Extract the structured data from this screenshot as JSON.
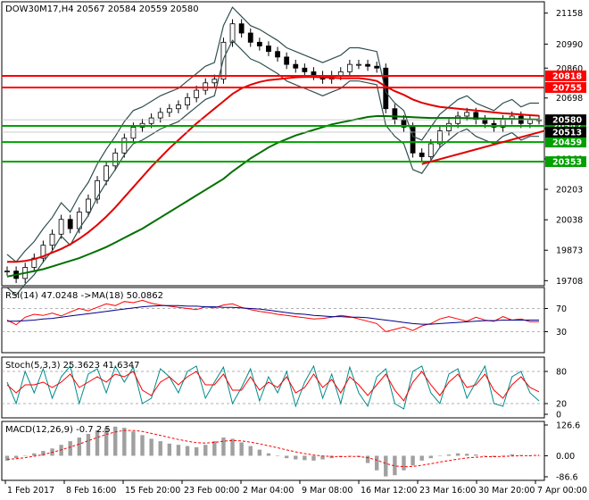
{
  "chart_data": [
    {
      "type": "candlestick",
      "symbol_title": "DOW30M17,H4  20567 20584 20559 20580",
      "ylim": [
        19700,
        21200
      ],
      "y_ticks": [
        19708,
        19873,
        20038,
        20203,
        20368,
        20533,
        20698,
        20860,
        20990,
        21158
      ],
      "y_tick_labels": [
        "19708",
        "19873",
        "20038",
        "20203",
        "20368",
        "20533",
        "20698",
        "20860",
        "20990",
        "21158"
      ],
      "x_labels": [
        "1 Feb 2017",
        "8 Feb 16:00",
        "15 Feb 20:00",
        "23 Feb 00:00",
        "2 Mar 04:00",
        "9 Mar 08:00",
        "16 Mar 12:00",
        "23 Mar 16:00",
        "30 Mar 20:00",
        "7 Apr 00:00"
      ],
      "horizontal_levels": [
        {
          "value": 20818,
          "label": "20818",
          "color": "#ff0000"
        },
        {
          "value": 20755,
          "label": "20755",
          "color": "#ff0000"
        },
        {
          "value": 20547,
          "label": "20547",
          "color": "#00a000"
        },
        {
          "value": 20459,
          "label": "20459",
          "color": "#00a000"
        },
        {
          "value": 20353,
          "label": "20353",
          "color": "#00a000"
        }
      ],
      "price_tags": [
        {
          "value": 20580,
          "label": "20580",
          "color": "#000000"
        },
        {
          "value": 20513,
          "label": "20513",
          "color": "#000000"
        }
      ],
      "close_series": [
        19760,
        19720,
        19780,
        19830,
        19900,
        19960,
        20040,
        19990,
        20080,
        20150,
        20250,
        20330,
        20400,
        20480,
        20540,
        20560,
        20590,
        20620,
        20640,
        20660,
        20700,
        20740,
        20780,
        20800,
        21000,
        21100,
        21050,
        21000,
        20980,
        20950,
        20920,
        20880,
        20860,
        20840,
        20820,
        20800,
        20820,
        20840,
        20880,
        20880,
        20870,
        20860,
        20640,
        20580,
        20540,
        20400,
        20380,
        20450,
        20520,
        20560,
        20600,
        20620,
        20580,
        20560,
        20540,
        20580,
        20600,
        20560,
        20580,
        20580
      ],
      "series": [
        {
          "name": "MA red",
          "color": "#e00000",
          "values": [
            19810,
            19810,
            19815,
            19825,
            19840,
            19860,
            19880,
            19905,
            19935,
            19970,
            20010,
            20055,
            20105,
            20160,
            20215,
            20270,
            20325,
            20375,
            20425,
            20470,
            20515,
            20560,
            20600,
            20640,
            20680,
            20720,
            20750,
            20770,
            20785,
            20795,
            20800,
            20805,
            20810,
            20812,
            20812,
            20810,
            20808,
            20805,
            20805,
            20805,
            20800,
            20790,
            20760,
            20735,
            20715,
            20690,
            20672,
            20660,
            20650,
            20645,
            20640,
            20635,
            20630,
            20625,
            20620,
            20615,
            20612,
            20608,
            20605,
            20602
          ]
        },
        {
          "name": "MA green",
          "color": "#007000",
          "values": [
            19730,
            19740,
            19750,
            19760,
            19770,
            19785,
            19800,
            19815,
            19830,
            19850,
            19870,
            19890,
            19915,
            19940,
            19965,
            19990,
            20020,
            20050,
            20080,
            20110,
            20140,
            20170,
            20200,
            20230,
            20260,
            20300,
            20335,
            20370,
            20400,
            20430,
            20455,
            20475,
            20495,
            20510,
            20525,
            20540,
            20555,
            20565,
            20575,
            20585,
            20595,
            20600,
            20600,
            20598,
            20596,
            20594,
            20592,
            20590,
            20590,
            20590,
            20590,
            20589,
            20588,
            20587,
            20586,
            20585,
            20584,
            20583,
            20582,
            20581
          ]
        }
      ],
      "trendline": {
        "from": [
          46,
          20340
        ],
        "to": [
          59,
          20520
        ],
        "color": "#e00000"
      }
    },
    {
      "type": "line",
      "title": "RSI(14) 47.0248  ->MA(18) 50.0862",
      "ylim": [
        0,
        100
      ],
      "y_ticks": [
        30,
        70
      ],
      "y_tick_labels": [
        "30",
        "70"
      ],
      "levels": [
        30,
        70
      ],
      "series": [
        {
          "name": "RSI(14)",
          "color": "#ff0000",
          "values": [
            50,
            42,
            55,
            60,
            58,
            62,
            57,
            64,
            70,
            66,
            72,
            78,
            75,
            82,
            80,
            84,
            79,
            76,
            74,
            72,
            70,
            68,
            73,
            71,
            76,
            78,
            72,
            68,
            65,
            63,
            60,
            58,
            56,
            54,
            52,
            53,
            55,
            58,
            56,
            52,
            48,
            44,
            30,
            34,
            38,
            32,
            40,
            44,
            52,
            56,
            52,
            48,
            55,
            50,
            48,
            56,
            50,
            52,
            47,
            47
          ]
        },
        {
          "name": "MA(18)",
          "color": "#00008b",
          "values": [
            48,
            48,
            49,
            50,
            52,
            53,
            55,
            57,
            59,
            61,
            63,
            65,
            67,
            69,
            71,
            73,
            74,
            75,
            75,
            75,
            74,
            74,
            73,
            73,
            72,
            72,
            71,
            70,
            69,
            67,
            65,
            63,
            61,
            60,
            58,
            57,
            56,
            56,
            55,
            55,
            54,
            52,
            50,
            48,
            46,
            44,
            43,
            43,
            44,
            45,
            46,
            47,
            48,
            49,
            49,
            50,
            50,
            50,
            50,
            50
          ]
        }
      ]
    },
    {
      "type": "line",
      "title": "Stoch(5,3,3) 25.3623 41.6347",
      "ylim": [
        0,
        100
      ],
      "y_ticks": [
        0,
        20,
        80
      ],
      "y_tick_labels": [
        "0",
        "20",
        "80"
      ],
      "levels": [
        20,
        80
      ],
      "series": [
        {
          "name": "%K",
          "color": "#008b8b",
          "values": [
            60,
            20,
            80,
            40,
            85,
            30,
            70,
            90,
            20,
            75,
            85,
            40,
            90,
            60,
            88,
            20,
            30,
            85,
            70,
            40,
            80,
            90,
            30,
            60,
            88,
            20,
            50,
            85,
            25,
            70,
            40,
            80,
            15,
            60,
            90,
            30,
            75,
            20,
            88,
            40,
            15,
            70,
            85,
            20,
            10,
            80,
            90,
            40,
            20,
            75,
            85,
            30,
            60,
            90,
            20,
            15,
            70,
            80,
            40,
            25
          ]
        },
        {
          "name": "%D",
          "color": "#ff0000",
          "values": [
            55,
            40,
            55,
            55,
            60,
            50,
            60,
            75,
            50,
            60,
            70,
            60,
            75,
            70,
            80,
            45,
            35,
            60,
            70,
            55,
            70,
            80,
            55,
            55,
            75,
            45,
            45,
            70,
            45,
            60,
            50,
            70,
            40,
            50,
            75,
            50,
            65,
            40,
            70,
            55,
            35,
            55,
            75,
            45,
            25,
            60,
            80,
            55,
            35,
            60,
            75,
            50,
            55,
            75,
            45,
            30,
            55,
            70,
            50,
            42
          ]
        }
      ]
    },
    {
      "type": "bar",
      "title": "MACD(12,26,9) -0.7 2.5",
      "ylim": [
        -86.6,
        126.6
      ],
      "y_ticks": [
        -86.6,
        0,
        126.6
      ],
      "y_tick_labels": [
        "-86.6",
        "0.00",
        "126.6"
      ],
      "series": [
        {
          "name": "MACD",
          "color": "#a0a0a0",
          "values": [
            -20,
            -10,
            0,
            10,
            20,
            30,
            45,
            60,
            75,
            90,
            105,
            115,
            120,
            115,
            100,
            85,
            70,
            60,
            50,
            45,
            40,
            35,
            45,
            60,
            75,
            70,
            55,
            40,
            25,
            10,
            0,
            -10,
            -15,
            -18,
            -20,
            -15,
            -10,
            -5,
            0,
            -5,
            -30,
            -60,
            -85,
            -80,
            -60,
            -40,
            -20,
            -10,
            0,
            5,
            10,
            8,
            5,
            0,
            -5,
            2,
            6,
            3,
            -1,
            -1
          ]
        },
        {
          "name": "Signal",
          "color": "#ff0000",
          "values": [
            -15,
            -12,
            -8,
            -2,
            5,
            14,
            24,
            36,
            48,
            62,
            75,
            88,
            98,
            104,
            104,
            100,
            92,
            84,
            75,
            67,
            60,
            54,
            52,
            55,
            60,
            63,
            61,
            56,
            49,
            41,
            33,
            24,
            16,
            9,
            3,
            -1,
            -3,
            -4,
            -3,
            -3,
            -8,
            -18,
            -32,
            -42,
            -45,
            -44,
            -39,
            -33,
            -26,
            -20,
            -14,
            -9,
            -6,
            -4,
            -4,
            -3,
            -1,
            0,
            0,
            2.5
          ]
        }
      ]
    }
  ]
}
